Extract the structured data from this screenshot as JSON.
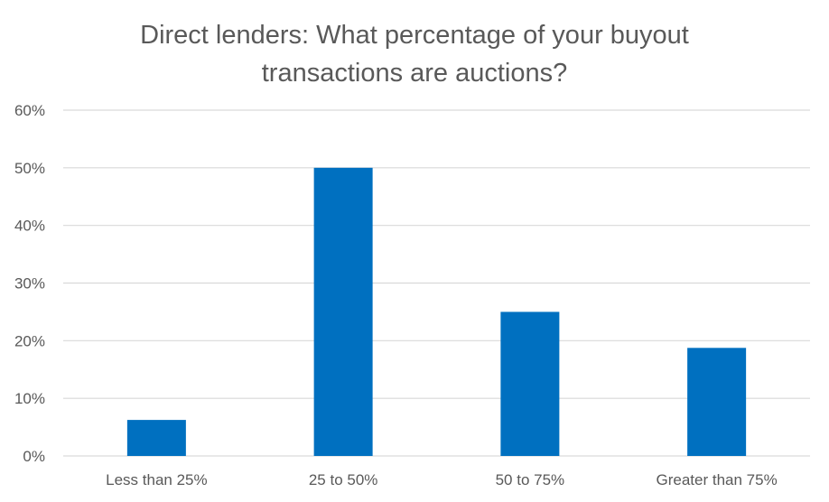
{
  "chart_data": {
    "type": "bar",
    "title_lines": [
      "Direct lenders: What percentage of your buyout",
      "transactions are auctions?"
    ],
    "categories": [
      "Less than 25%",
      "25 to 50%",
      "50 to 75%",
      "Greater than 75%"
    ],
    "values": [
      6.25,
      50,
      25,
      18.75
    ],
    "ylim": [
      0,
      60
    ],
    "yticks": [
      0,
      10,
      20,
      30,
      40,
      50,
      60
    ],
    "ytick_labels": [
      "0%",
      "10%",
      "20%",
      "30%",
      "40%",
      "50%",
      "60%"
    ],
    "bar_color": "#0070C0",
    "grid": true,
    "gridline_color": "#D9D9D9",
    "legend": "none"
  }
}
